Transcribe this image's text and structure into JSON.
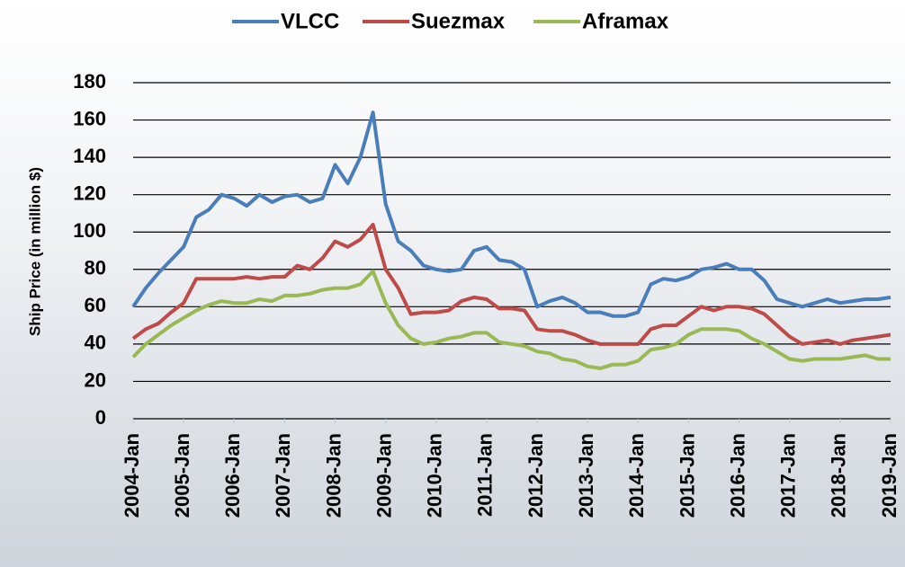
{
  "chart_data": {
    "type": "line",
    "y_label": "Ship Price (in million $)",
    "x": [
      "2004-Jan",
      "2004-Apr",
      "2004-Jul",
      "2004-Oct",
      "2005-Jan",
      "2005-Apr",
      "2005-Jul",
      "2005-Oct",
      "2006-Jan",
      "2006-Apr",
      "2006-Jul",
      "2006-Oct",
      "2007-Jan",
      "2007-Apr",
      "2007-Jul",
      "2007-Oct",
      "2008-Jan",
      "2008-Apr",
      "2008-Jul",
      "2008-Oct",
      "2009-Jan",
      "2009-Apr",
      "2009-Jul",
      "2009-Oct",
      "2010-Jan",
      "2010-Apr",
      "2010-Jul",
      "2010-Oct",
      "2011-Jan",
      "2011-Apr",
      "2011-Jul",
      "2011-Oct",
      "2012-Jan",
      "2012-Apr",
      "2012-Jul",
      "2012-Oct",
      "2013-Jan",
      "2013-Apr",
      "2013-Jul",
      "2013-Oct",
      "2014-Jan",
      "2014-Apr",
      "2014-Jul",
      "2014-Oct",
      "2015-Jan",
      "2015-Apr",
      "2015-Jul",
      "2015-Oct",
      "2016-Jan",
      "2016-Apr",
      "2016-Jul",
      "2016-Oct",
      "2017-Jan",
      "2017-Apr",
      "2017-Jul",
      "2017-Oct",
      "2018-Jan",
      "2018-Apr",
      "2018-Jul",
      "2018-Oct",
      "2019-Jan"
    ],
    "series": [
      {
        "name": "VLCC",
        "color": "#4a7ebb",
        "values": [
          60,
          70,
          78,
          85,
          92,
          108,
          112,
          120,
          118,
          114,
          120,
          116,
          119,
          120,
          116,
          118,
          136,
          126,
          140,
          164,
          115,
          95,
          90,
          82,
          80,
          79,
          80,
          90,
          92,
          85,
          84,
          80,
          60,
          63,
          65,
          62,
          57,
          57,
          55,
          55,
          57,
          72,
          75,
          74,
          76,
          80,
          81,
          83,
          80,
          80,
          74,
          64,
          62,
          60,
          62,
          64,
          62,
          63,
          64,
          64,
          65
        ]
      },
      {
        "name": "Suezmax",
        "color": "#be4b48",
        "values": [
          43,
          48,
          51,
          57,
          62,
          75,
          75,
          75,
          75,
          76,
          75,
          76,
          76,
          82,
          80,
          86,
          95,
          92,
          96,
          104,
          80,
          70,
          56,
          57,
          57,
          58,
          63,
          65,
          64,
          59,
          59,
          58,
          48,
          47,
          47,
          45,
          42,
          40,
          40,
          40,
          40,
          48,
          50,
          50,
          55,
          60,
          58,
          60,
          60,
          59,
          56,
          50,
          44,
          40,
          41,
          42,
          40,
          42,
          43,
          44,
          45
        ]
      },
      {
        "name": "Aframax",
        "color": "#98b954",
        "values": [
          33,
          40,
          45,
          50,
          54,
          58,
          61,
          63,
          62,
          62,
          64,
          63,
          66,
          66,
          67,
          69,
          70,
          70,
          72,
          79,
          62,
          50,
          43,
          40,
          41,
          43,
          44,
          46,
          46,
          41,
          40,
          39,
          36,
          35,
          32,
          31,
          28,
          27,
          29,
          29,
          31,
          37,
          38,
          40,
          45,
          48,
          48,
          48,
          47,
          43,
          40,
          36,
          32,
          31,
          32,
          32,
          32,
          33,
          34,
          32,
          32
        ]
      }
    ],
    "xticks": [
      "2004-Jan",
      "2005-Jan",
      "2006-Jan",
      "2007-Jan",
      "2008-Jan",
      "2009-Jan",
      "2010-Jan",
      "2011-Jan",
      "2012-Jan",
      "2013-Jan",
      "2014-Jan",
      "2015-Jan",
      "2016-Jan",
      "2017-Jan",
      "2018-Jan",
      "2019-Jan"
    ],
    "ylim": [
      0,
      180
    ],
    "yticks": [
      0,
      20,
      40,
      60,
      80,
      100,
      120,
      140,
      160,
      180
    ],
    "grid": true,
    "legend": "top"
  }
}
